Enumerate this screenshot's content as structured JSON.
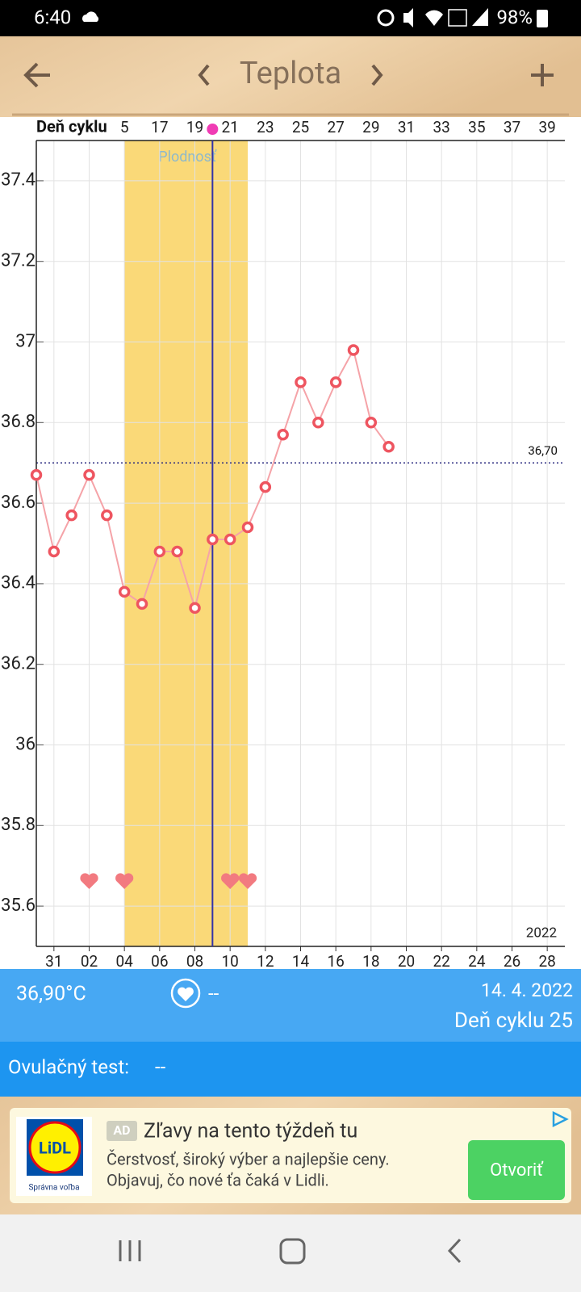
{
  "status_bar": {
    "time": "6:40",
    "battery": "98%"
  },
  "header": {
    "title": "Teplota"
  },
  "chart_data": {
    "type": "line",
    "x_label": "Deň cyklu",
    "categories": [
      null,
      "31",
      null,
      "02",
      null,
      "04",
      null,
      "06",
      null,
      "08",
      null,
      "10",
      null,
      "12",
      null,
      "14",
      null,
      "16",
      null,
      "18",
      null,
      "20",
      null,
      "22",
      null,
      "24",
      null,
      "26",
      null,
      "28"
    ],
    "cycle_days": [
      null,
      null,
      null,
      null,
      null,
      "5",
      null,
      "17",
      null,
      "19",
      null,
      "21",
      null,
      "23",
      null,
      "25",
      null,
      "27",
      null,
      "29",
      null,
      "31",
      null,
      "33",
      null,
      "35",
      null,
      "37",
      null,
      "39"
    ],
    "values": [
      36.67,
      36.48,
      36.57,
      36.67,
      36.57,
      36.38,
      36.35,
      36.48,
      36.48,
      36.34,
      36.51,
      36.51,
      36.54,
      36.64,
      36.77,
      36.9,
      36.8,
      36.9,
      36.98,
      36.8,
      36.74,
      null,
      null,
      null,
      null,
      null,
      null,
      null,
      null,
      null
    ],
    "color": "#ee5560",
    "line_color": "#f5a3a8",
    "ylim": [
      35.5,
      37.5
    ],
    "yticks": [
      35.6,
      35.8,
      36,
      36.2,
      36.4,
      36.6,
      36.8,
      37,
      37.2,
      37.4
    ],
    "grid": true,
    "reference_line": {
      "value": 36.7,
      "label": "36,70"
    },
    "year": "2022",
    "fertile_window": {
      "label": "Plodnosť",
      "start": 5,
      "end": 12
    },
    "ovulation_day": 10,
    "hearts": [
      3,
      5,
      11,
      12
    ]
  },
  "info": {
    "temperature": "36,90°C",
    "intercourse": "--",
    "date": "14. 4. 2022",
    "cycle_day": "Deň cyklu 25"
  },
  "ovulation_test": {
    "label": "Ovulačný test:",
    "value": "--"
  },
  "ad": {
    "badge": "AD",
    "title": "Zľavy na tento týždeň tu",
    "line1": "Čerstvosť, široký výber a najlepšie ceny.",
    "line2": "Objavuj, čo nové ťa čaká v Lidli.",
    "button": "Otvoriť",
    "logo": "LiDL",
    "logo_caption": "Správna voľba"
  }
}
